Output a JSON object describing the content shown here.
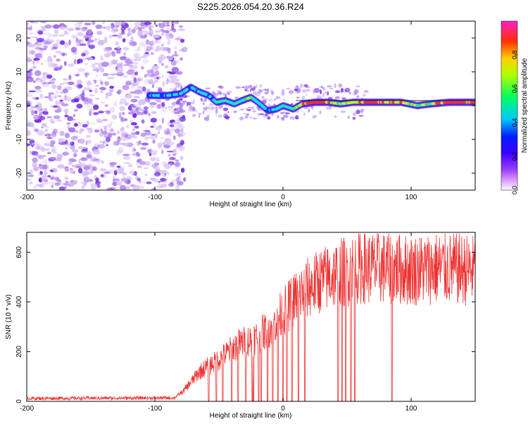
{
  "title": "S225.2026.054.20.36.R24",
  "chart_data": [
    {
      "type": "heatmap",
      "xlabel": "Height of straight line (km)",
      "ylabel": "Frequency (Hz)",
      "xlim": [
        -200,
        150
      ],
      "ylim": [
        -25,
        25
      ],
      "xticks": [
        -200,
        -100,
        0,
        100
      ],
      "yticks": [
        -20,
        -10,
        0,
        10,
        20
      ],
      "colorbar": {
        "label": "Normalized spectral amplitude",
        "range": [
          0,
          1
        ],
        "ticks": [
          0.0,
          0.2,
          0.4,
          0.6,
          0.8
        ],
        "colors": [
          "#ffffff",
          "#e090ff",
          "#7000ff",
          "#0000ff",
          "#00d0ff",
          "#00ff60",
          "#c0ff00",
          "#ffd000",
          "#ff3000",
          "#ff20c0"
        ]
      },
      "colors": {
        "noise_light": "#d9c2f5",
        "noise_mid": "#b184f0",
        "noise_dark": "#6a1de0",
        "trace_blue": "#1a2cff",
        "trace_cyan": "#20d8f0",
        "trace_green": "#40e080",
        "trace_yellow": "#c8e838",
        "trace_red": "#f03040"
      },
      "noise_region_x": [
        -200,
        -80
      ],
      "ridge": [
        {
          "x": -105,
          "y": 3.0,
          "a": 0.25
        },
        {
          "x": -90,
          "y": 3.0,
          "a": 0.3
        },
        {
          "x": -80,
          "y": 3.5,
          "a": 0.3
        },
        {
          "x": -72,
          "y": 5.5,
          "a": 0.3
        },
        {
          "x": -65,
          "y": 4.0,
          "a": 0.3
        },
        {
          "x": -58,
          "y": 3.0,
          "a": 0.3
        },
        {
          "x": -52,
          "y": 1.0,
          "a": 0.35
        },
        {
          "x": -45,
          "y": 1.5,
          "a": 0.4
        },
        {
          "x": -38,
          "y": 0.5,
          "a": 0.35
        },
        {
          "x": -32,
          "y": 1.5,
          "a": 0.4
        },
        {
          "x": -25,
          "y": 2.5,
          "a": 0.45
        },
        {
          "x": -18,
          "y": 0.5,
          "a": 0.3
        },
        {
          "x": -12,
          "y": -1.5,
          "a": 0.3
        },
        {
          "x": -5,
          "y": -1.0,
          "a": 0.3
        },
        {
          "x": 0,
          "y": 0.0,
          "a": 0.35
        },
        {
          "x": 8,
          "y": -1.0,
          "a": 0.4
        },
        {
          "x": 15,
          "y": 0.5,
          "a": 0.6
        },
        {
          "x": 25,
          "y": 1.0,
          "a": 0.85
        },
        {
          "x": 35,
          "y": 1.0,
          "a": 0.6
        },
        {
          "x": 45,
          "y": 0.5,
          "a": 0.5
        },
        {
          "x": 55,
          "y": 1.0,
          "a": 0.6
        },
        {
          "x": 68,
          "y": 1.0,
          "a": 0.7
        },
        {
          "x": 80,
          "y": 1.0,
          "a": 0.6
        },
        {
          "x": 92,
          "y": 1.0,
          "a": 0.6
        },
        {
          "x": 105,
          "y": 0.0,
          "a": 0.45
        },
        {
          "x": 115,
          "y": 0.5,
          "a": 0.5
        },
        {
          "x": 130,
          "y": 1.0,
          "a": 0.75
        },
        {
          "x": 145,
          "y": 1.0,
          "a": 0.65
        }
      ]
    },
    {
      "type": "line",
      "xlabel": "Height of straight line (km)",
      "ylabel": "SNR (10 * v/v)",
      "xlim": [
        -200,
        150
      ],
      "ylim": [
        0,
        680
      ],
      "xticks": [
        -200,
        -100,
        0,
        100
      ],
      "yticks": [
        0,
        200,
        400,
        600
      ],
      "color": "#ee3333",
      "envelope": [
        {
          "x": -200,
          "y": 12
        },
        {
          "x": -85,
          "y": 14
        },
        {
          "x": -78,
          "y": 40
        },
        {
          "x": -65,
          "y": 120
        },
        {
          "x": -50,
          "y": 170
        },
        {
          "x": -35,
          "y": 230
        },
        {
          "x": -20,
          "y": 260
        },
        {
          "x": -10,
          "y": 300
        },
        {
          "x": 0,
          "y": 360
        },
        {
          "x": 10,
          "y": 420
        },
        {
          "x": 20,
          "y": 460
        },
        {
          "x": 30,
          "y": 490
        },
        {
          "x": 45,
          "y": 520
        },
        {
          "x": 60,
          "y": 540
        },
        {
          "x": 80,
          "y": 540
        },
        {
          "x": 100,
          "y": 530
        },
        {
          "x": 120,
          "y": 540
        },
        {
          "x": 150,
          "y": 530
        }
      ],
      "dropouts_x": [
        -58,
        -52,
        -47,
        -40,
        -35,
        -29,
        -24,
        -23,
        -19,
        -17,
        -12,
        -8,
        -4,
        0,
        3,
        7,
        12,
        17,
        43,
        46,
        49,
        53,
        56,
        85
      ]
    }
  ]
}
